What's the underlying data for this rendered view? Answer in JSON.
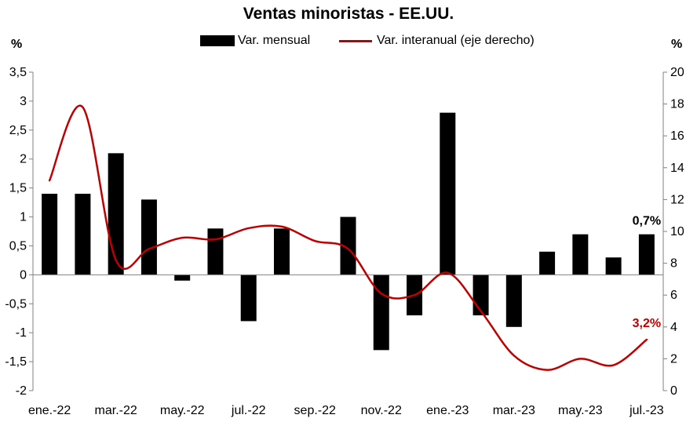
{
  "chart_data": {
    "type": "bar+line",
    "title": "Ventas minoristas - EE.UU.",
    "y_left_label": "%",
    "y_right_label": "%",
    "categories": [
      "ene.-22",
      "feb.-22",
      "mar.-22",
      "abr.-22",
      "may.-22",
      "jun.-22",
      "jul.-22",
      "ago.-22",
      "sep.-22",
      "oct.-22",
      "nov.-22",
      "dic.-22",
      "ene.-23",
      "feb.-23",
      "mar.-23",
      "abr.-23",
      "may.-23",
      "jun.-23",
      "jul.-23"
    ],
    "x_tick_labels": [
      "ene.-22",
      "mar.-22",
      "may.-22",
      "jul.-22",
      "sep.-22",
      "nov.-22",
      "ene.-23",
      "mar.-23",
      "may.-23",
      "jul.-23"
    ],
    "series": [
      {
        "name": "Var. mensual",
        "type": "bar",
        "axis": "left",
        "color": "#000000",
        "values": [
          1.4,
          1.4,
          2.1,
          1.3,
          -0.1,
          0.8,
          -0.8,
          0.8,
          0.0,
          1.0,
          -1.3,
          -0.7,
          2.8,
          -0.7,
          -0.9,
          0.4,
          0.7,
          0.3,
          0.7
        ]
      },
      {
        "name": "Var. interanual (eje derecho)",
        "type": "line",
        "axis": "right",
        "color": "#c00000",
        "values": [
          13.2,
          17.8,
          8.2,
          8.9,
          9.6,
          9.5,
          10.2,
          10.3,
          9.4,
          8.9,
          6.1,
          6.0,
          7.4,
          5.0,
          2.2,
          1.3,
          2.0,
          1.6,
          3.2
        ]
      }
    ],
    "y_left": {
      "min": -2,
      "max": 3.5,
      "ticks": [
        "-2",
        "-1,5",
        "-1",
        "-0,5",
        "0",
        "0,5",
        "1",
        "1,5",
        "2",
        "2,5",
        "3",
        "3,5"
      ]
    },
    "y_right": {
      "min": 0,
      "max": 20,
      "ticks": [
        "0",
        "2",
        "4",
        "6",
        "8",
        "10",
        "12",
        "14",
        "16",
        "18",
        "20"
      ]
    },
    "annotations": [
      {
        "text": "0,7%",
        "series": 0,
        "index": 18,
        "color": "#000000"
      },
      {
        "text": "3,2%",
        "series": 1,
        "index": 18,
        "color": "#c00000"
      }
    ],
    "legend_position": "top-center"
  }
}
